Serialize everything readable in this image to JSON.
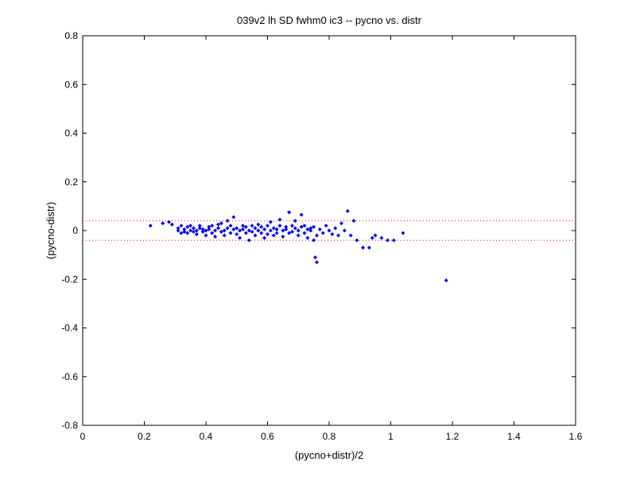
{
  "chart_data": {
    "type": "scatter",
    "title": "039v2 lh SD fwhm0 ic3 -- pycno vs. distr",
    "xlabel": "(pycno+distr)/2",
    "ylabel": "(pycno-distr)",
    "xlim": [
      0,
      1.6
    ],
    "ylim": [
      -0.8,
      0.8
    ],
    "x_ticks": [
      0,
      0.2,
      0.4,
      0.6,
      0.8,
      1,
      1.2,
      1.4,
      1.6
    ],
    "x_tick_labels": [
      "0",
      "0.2",
      "0.4",
      "0.6",
      "0.8",
      "1",
      "1.2",
      "1.4",
      "1.6"
    ],
    "y_ticks": [
      -0.8,
      -0.6,
      -0.4,
      -0.2,
      0,
      0.2,
      0.4,
      0.6,
      0.8
    ],
    "y_tick_labels": [
      "-0.8",
      "-0.6",
      "-0.4",
      "-0.2",
      "0",
      "0.2",
      "0.4",
      "0.6",
      "0.8"
    ],
    "grid": false,
    "reference_lines": [
      {
        "y": 0.04,
        "style": "dotted",
        "color": "#ff0000"
      },
      {
        "y": -0.04,
        "style": "dotted",
        "color": "#ff0000"
      }
    ],
    "series": [
      {
        "marker_color": "#0000ff",
        "points": [
          [
            0.22,
            0.02
          ],
          [
            0.26,
            0.03
          ],
          [
            0.28,
            0.035
          ],
          [
            0.29,
            0.025
          ],
          [
            0.31,
            0.01
          ],
          [
            0.31,
            0.0
          ],
          [
            0.32,
            -0.01
          ],
          [
            0.32,
            0.02
          ],
          [
            0.33,
            0.005
          ],
          [
            0.33,
            -0.005
          ],
          [
            0.34,
            0.015
          ],
          [
            0.34,
            -0.01
          ],
          [
            0.35,
            0.0
          ],
          [
            0.35,
            0.02
          ],
          [
            0.36,
            -0.005
          ],
          [
            0.36,
            0.01
          ],
          [
            0.37,
            0.0
          ],
          [
            0.37,
            -0.015
          ],
          [
            0.38,
            0.01
          ],
          [
            0.38,
            0.02
          ],
          [
            0.39,
            -0.005
          ],
          [
            0.39,
            0.005
          ],
          [
            0.4,
            0.0
          ],
          [
            0.4,
            -0.02
          ],
          [
            0.41,
            0.015
          ],
          [
            0.41,
            0.005
          ],
          [
            0.42,
            -0.01
          ],
          [
            0.42,
            0.02
          ],
          [
            0.43,
            0.0
          ],
          [
            0.43,
            -0.025
          ],
          [
            0.44,
            0.01
          ],
          [
            0.44,
            0.025
          ],
          [
            0.45,
            -0.005
          ],
          [
            0.45,
            0.03
          ],
          [
            0.46,
            0.0
          ],
          [
            0.46,
            -0.02
          ],
          [
            0.47,
            0.01
          ],
          [
            0.47,
            0.04
          ],
          [
            0.48,
            -0.01
          ],
          [
            0.48,
            0.02
          ],
          [
            0.49,
            0.005
          ],
          [
            0.49,
            0.055
          ],
          [
            0.5,
            -0.015
          ],
          [
            0.5,
            0.01
          ],
          [
            0.51,
            0.0
          ],
          [
            0.51,
            -0.03
          ],
          [
            0.52,
            0.02
          ],
          [
            0.52,
            0.005
          ],
          [
            0.53,
            -0.01
          ],
          [
            0.53,
            0.015
          ],
          [
            0.54,
            0.0
          ],
          [
            0.54,
            -0.04
          ],
          [
            0.55,
            0.02
          ],
          [
            0.55,
            -0.005
          ],
          [
            0.56,
            0.01
          ],
          [
            0.56,
            -0.02
          ],
          [
            0.57,
            0.025
          ],
          [
            0.57,
            0.0
          ],
          [
            0.58,
            -0.01
          ],
          [
            0.58,
            0.015
          ],
          [
            0.59,
            0.005
          ],
          [
            0.59,
            -0.03
          ],
          [
            0.6,
            0.02
          ],
          [
            0.6,
            -0.015
          ],
          [
            0.61,
            0.0
          ],
          [
            0.61,
            0.035
          ],
          [
            0.62,
            -0.02
          ],
          [
            0.62,
            0.01
          ],
          [
            0.63,
            0.005
          ],
          [
            0.63,
            -0.01
          ],
          [
            0.64,
            0.02
          ],
          [
            0.64,
            0.045
          ],
          [
            0.65,
            0.0
          ],
          [
            0.65,
            -0.025
          ],
          [
            0.66,
            0.015
          ],
          [
            0.66,
            0.005
          ],
          [
            0.67,
            -0.01
          ],
          [
            0.67,
            0.075
          ],
          [
            0.68,
            0.02
          ],
          [
            0.68,
            -0.005
          ],
          [
            0.69,
            0.01
          ],
          [
            0.69,
            0.04
          ],
          [
            0.7,
            -0.02
          ],
          [
            0.7,
            0.0
          ],
          [
            0.71,
            0.015
          ],
          [
            0.71,
            0.065
          ],
          [
            0.72,
            -0.01
          ],
          [
            0.72,
            0.02
          ],
          [
            0.73,
            0.005
          ],
          [
            0.73,
            -0.03
          ],
          [
            0.74,
            0.01
          ],
          [
            0.74,
            0.0
          ],
          [
            0.75,
            -0.04
          ],
          [
            0.75,
            0.015
          ],
          [
            0.76,
            -0.02
          ],
          [
            0.76,
            -0.13
          ],
          [
            0.755,
            -0.11
          ],
          [
            0.77,
            0.005
          ],
          [
            0.78,
            -0.01
          ],
          [
            0.79,
            0.02
          ],
          [
            0.8,
            0.0
          ],
          [
            0.81,
            -0.015
          ],
          [
            0.82,
            0.01
          ],
          [
            0.83,
            -0.02
          ],
          [
            0.84,
            0.03
          ],
          [
            0.85,
            0.0
          ],
          [
            0.86,
            0.08
          ],
          [
            0.87,
            -0.02
          ],
          [
            0.88,
            0.04
          ],
          [
            0.89,
            -0.04
          ],
          [
            0.91,
            -0.07
          ],
          [
            0.93,
            -0.07
          ],
          [
            0.94,
            -0.03
          ],
          [
            0.95,
            -0.02
          ],
          [
            0.97,
            -0.03
          ],
          [
            0.99,
            -0.04
          ],
          [
            1.01,
            -0.04
          ],
          [
            1.04,
            -0.01
          ],
          [
            1.18,
            -0.205
          ]
        ]
      }
    ]
  }
}
